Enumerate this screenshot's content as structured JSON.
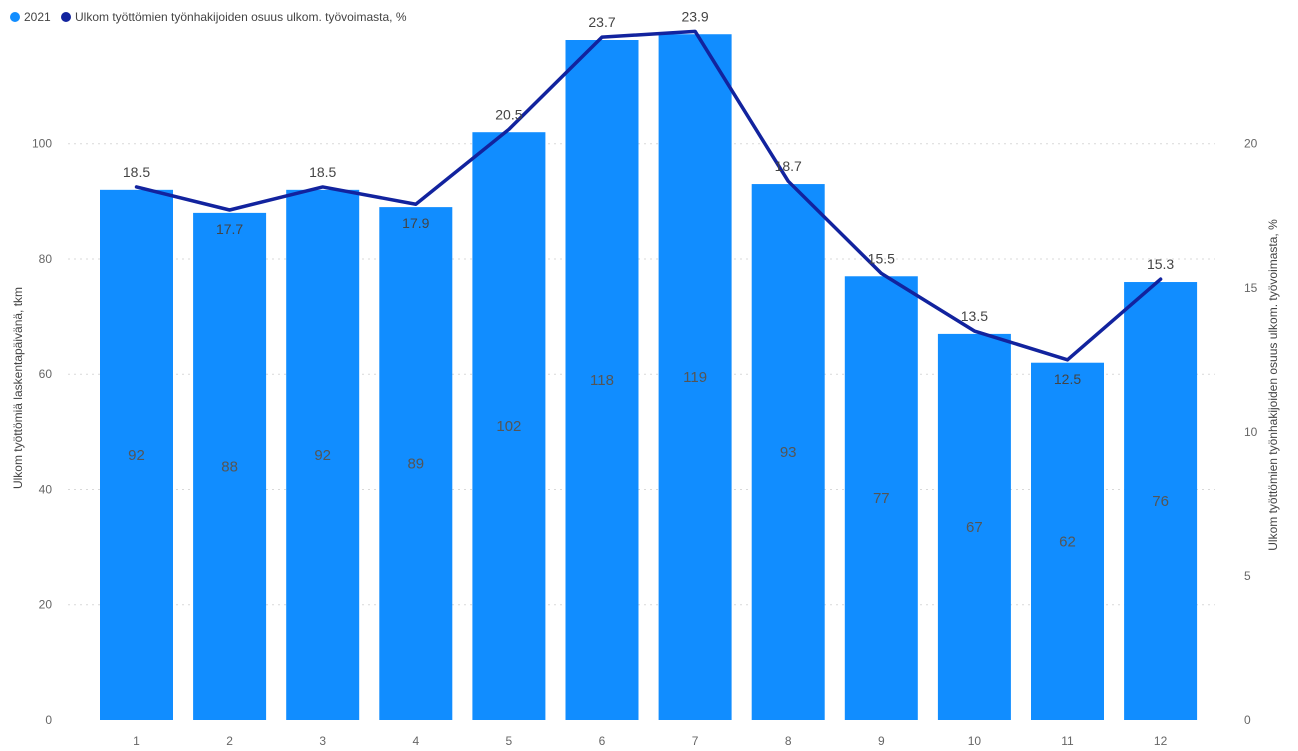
{
  "chart_data": {
    "type": "bar",
    "title": "",
    "categories": [
      "1",
      "2",
      "3",
      "4",
      "5",
      "6",
      "7",
      "8",
      "9",
      "10",
      "11",
      "12"
    ],
    "series": [
      {
        "name": "2021",
        "type": "bar",
        "axis": "left",
        "color": "#118DFF",
        "values": [
          92,
          88,
          92,
          89,
          102,
          118,
          119,
          93,
          77,
          67,
          62,
          76
        ]
      },
      {
        "name": "Ulkom työttömien työnhakijoiden osuus ulkom. työvoimasta, %",
        "type": "line",
        "axis": "right",
        "color": "#12239E",
        "values": [
          18.5,
          17.7,
          18.5,
          17.9,
          20.5,
          23.7,
          23.9,
          18.7,
          15.5,
          13.5,
          12.5,
          15.3
        ]
      }
    ],
    "y_left": {
      "label": "Ulkom työttömiä laskentapäivänä, tkm",
      "range": [
        0,
        118
      ],
      "ticks": [
        "0",
        "20",
        "40",
        "60",
        "80",
        "100"
      ]
    },
    "y_right": {
      "label": "Ulkom työttömien työnhakijoiden osuus ulkom. työvoimasta, %",
      "range": [
        0,
        23.6
      ],
      "ticks": [
        "0",
        "5",
        "10",
        "15",
        "20"
      ]
    },
    "xlabel": "",
    "grid": true,
    "legend_position": "top-left"
  }
}
